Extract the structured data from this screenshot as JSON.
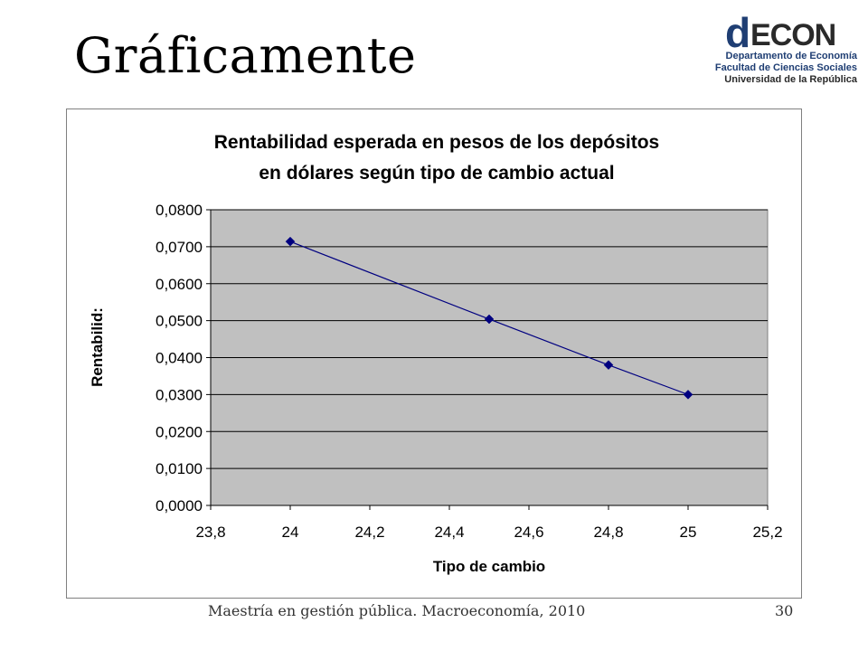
{
  "slide": {
    "title": "Gráficamente",
    "footer": "Maestría en gestión pública. Macroeconomía, 2010",
    "page_number": "30"
  },
  "logo": {
    "mark_text": "dECON",
    "line1": "Departamento de Economía",
    "line2": "Facultad de Ciencias Sociales",
    "line3": "Universidad de la República",
    "colors": {
      "blue": "#1f3e73",
      "dark": "#2a2a2a"
    }
  },
  "chart_data": {
    "type": "scatter",
    "title_lines": [
      "Rentabilidad esperada en pesos de los depósitos",
      "en dólares según tipo de cambio actual"
    ],
    "xlabel": "Tipo de cambio",
    "ylabel": "Rentabilid:",
    "xlim": [
      23.8,
      25.2
    ],
    "ylim": [
      0,
      0.08
    ],
    "x_ticks": [
      23.8,
      24,
      24.2,
      24.4,
      24.6,
      24.8,
      25,
      25.2
    ],
    "x_tick_labels": [
      "23,8",
      "24",
      "24,2",
      "24,4",
      "24,6",
      "24,8",
      "25",
      "25,2"
    ],
    "y_ticks": [
      0,
      0.01,
      0.02,
      0.03,
      0.04,
      0.05,
      0.06,
      0.07,
      0.08
    ],
    "y_tick_labels": [
      "0,0000",
      "0,0100",
      "0,0200",
      "0,0300",
      "0,0400",
      "0,0500",
      "0,0600",
      "0,0700",
      "0,0800"
    ],
    "series": [
      {
        "x": [
          24,
          24.5,
          24.8,
          25
        ],
        "y": [
          0.0714,
          0.0504,
          0.038,
          0.03
        ],
        "line": true,
        "marker": "diamond"
      }
    ],
    "grid": "horizontal",
    "legend": "none",
    "colors": {
      "plot_bg": "#c0c0c0",
      "series": "#000080",
      "gridline": "#000000"
    }
  }
}
